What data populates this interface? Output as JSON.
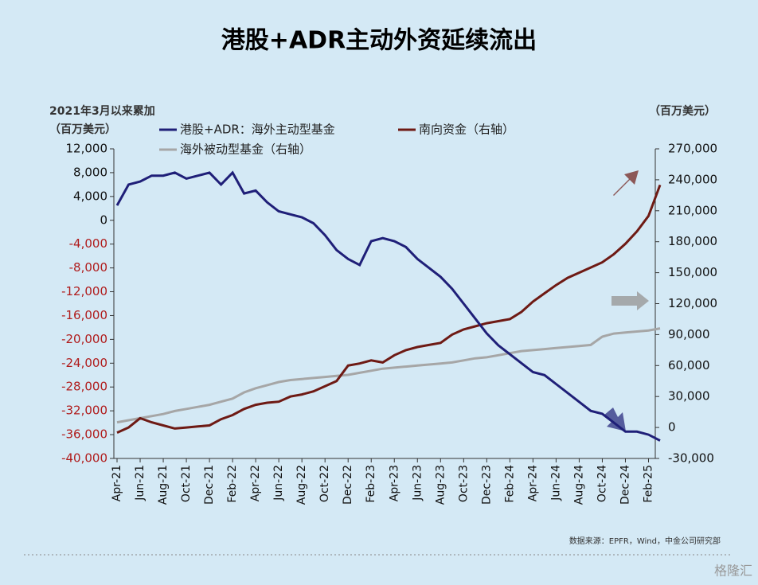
{
  "chart_data": {
    "type": "line",
    "title": "港股+ADR主动外资延续流出",
    "y_label": "2021年3月以来累加",
    "y_unit": "（百万美元）",
    "y2_unit": "（百万美元）",
    "source": "数据来源：EPFR，Wind，中金公司研究部",
    "watermark": "格隆汇",
    "categories": [
      "Apr-21",
      null,
      "Jun-21",
      null,
      "Aug-21",
      null,
      "Oct-21",
      null,
      "Dec-21",
      null,
      "Feb-22",
      null,
      "Apr-22",
      null,
      "Jun-22",
      null,
      "Aug-22",
      null,
      "Oct-22",
      null,
      "Dec-22",
      null,
      "Feb-23",
      null,
      "Apr-23",
      null,
      "Jun-23",
      null,
      "Aug-23",
      null,
      "Oct-23",
      null,
      "Dec-23",
      null,
      "Feb-24",
      null,
      "Apr-24",
      null,
      "Jun-24",
      null,
      "Aug-24",
      null,
      "Oct-24",
      null,
      "Dec-24",
      null,
      "Feb-25",
      null
    ],
    "series": [
      {
        "name": "港股+ADR：海外主动型基金",
        "color": "#1f1f78",
        "values": [
          2500,
          6000,
          6500,
          7500,
          7500,
          8000,
          7000,
          7500,
          8000,
          6000,
          8000,
          4500,
          5000,
          3000,
          1500,
          1000,
          500,
          -500,
          -2500,
          -5000,
          -6500,
          -7500,
          -3500,
          -3000,
          -3500,
          -4500,
          -6500,
          -8000,
          -9500,
          -11500,
          -14000,
          -16500,
          -19000,
          -21000,
          -22500,
          -24000,
          -25500,
          -26000,
          -27500,
          -29000,
          -30500,
          -32000,
          -32500,
          -34000,
          -35500,
          -35500,
          -36000,
          -37000
        ]
      },
      {
        "name": "南向资金（右轴）",
        "color": "#6e1a14",
        "axis": "y2",
        "values": [
          -5000,
          0,
          9000,
          5000,
          2000,
          -1000,
          0,
          1000,
          2000,
          8000,
          12000,
          18000,
          22000,
          24000,
          25000,
          30000,
          32000,
          35000,
          40000,
          45000,
          60000,
          62000,
          65000,
          63000,
          70000,
          75000,
          78000,
          80000,
          82000,
          90000,
          95000,
          98000,
          101000,
          103000,
          105000,
          112000,
          122000,
          130000,
          138000,
          145000,
          150000,
          155000,
          160000,
          168000,
          178000,
          190000,
          205000,
          235000
        ]
      },
      {
        "name": "海外被动型基金（右轴）",
        "color": "#a6a6a6",
        "axis": "y2",
        "values": [
          5000,
          7000,
          9000,
          11000,
          13000,
          16000,
          18000,
          20000,
          22000,
          25000,
          28000,
          34000,
          38000,
          41000,
          44000,
          46000,
          47000,
          48000,
          49000,
          50000,
          51000,
          53000,
          55000,
          57000,
          58000,
          59000,
          60000,
          61000,
          62000,
          63000,
          65000,
          67000,
          68000,
          70000,
          72000,
          74000,
          75000,
          76000,
          77000,
          78000,
          79000,
          80000,
          88000,
          91000,
          92000,
          93000,
          94000,
          96000
        ]
      }
    ],
    "ylim": [
      -40000,
      12000
    ],
    "yticks": [
      {
        "value": 12000,
        "label": "12,000"
      },
      {
        "value": 8000,
        "label": "8,000"
      },
      {
        "value": 4000,
        "label": "4,000"
      },
      0,
      {
        "value": -4000,
        "label": "-4,000"
      },
      {
        "value": -8000,
        "label": "-8,000"
      },
      {
        "value": -12000,
        "label": "-12,000"
      },
      {
        "value": -16000,
        "label": "-16,000"
      },
      {
        "value": -20000,
        "label": "-20,000"
      },
      {
        "value": -24000,
        "label": "-24,000"
      },
      {
        "value": -28000,
        "label": "-28,000"
      },
      {
        "value": -32000,
        "label": "-32,000"
      },
      {
        "value": -36000,
        "label": "-36,000"
      },
      {
        "value": -40000,
        "label": "-40,000"
      }
    ],
    "y2lim": [
      -30000,
      270000
    ],
    "y2ticks": [
      {
        "value": 270000,
        "label": "270,000"
      },
      {
        "value": 240000,
        "label": "240,000"
      },
      {
        "value": 210000,
        "label": "210,000"
      },
      {
        "value": 180000,
        "label": "180,000"
      },
      {
        "value": 150000,
        "label": "150,000"
      },
      {
        "value": 120000,
        "label": "120,000"
      },
      {
        "value": 90000,
        "label": "90,000"
      },
      {
        "value": 60000,
        "label": "60,000"
      },
      {
        "value": 30000,
        "label": "30,000"
      },
      0,
      {
        "value": -30000,
        "label": "-30,000"
      }
    ],
    "negative_tick_color": "#b01c1c"
  }
}
